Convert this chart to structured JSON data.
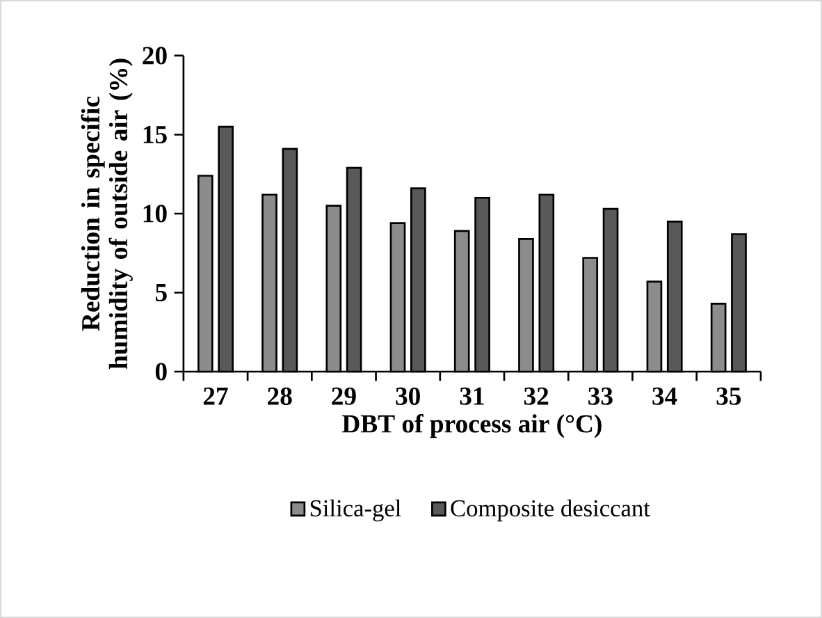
{
  "chart_data": {
    "type": "bar",
    "categories": [
      "27",
      "28",
      "29",
      "30",
      "31",
      "32",
      "33",
      "34",
      "35"
    ],
    "series": [
      {
        "name": "Silica-gel",
        "color": "#8c8c8c",
        "values": [
          12.4,
          11.2,
          10.5,
          9.4,
          8.9,
          8.4,
          7.2,
          5.7,
          4.3
        ]
      },
      {
        "name": "Composite desiccant",
        "color": "#595959",
        "values": [
          15.5,
          14.1,
          12.9,
          11.6,
          11.0,
          11.2,
          10.3,
          9.5,
          8.7
        ]
      }
    ],
    "xlabel": "DBT of process air (°C)",
    "ylabel": "Reduction in specific humidity of outside air (%)",
    "ylim": [
      0,
      20
    ],
    "yticks": [
      0,
      5,
      10,
      15,
      20
    ],
    "grid": false,
    "legend": "bottom"
  }
}
